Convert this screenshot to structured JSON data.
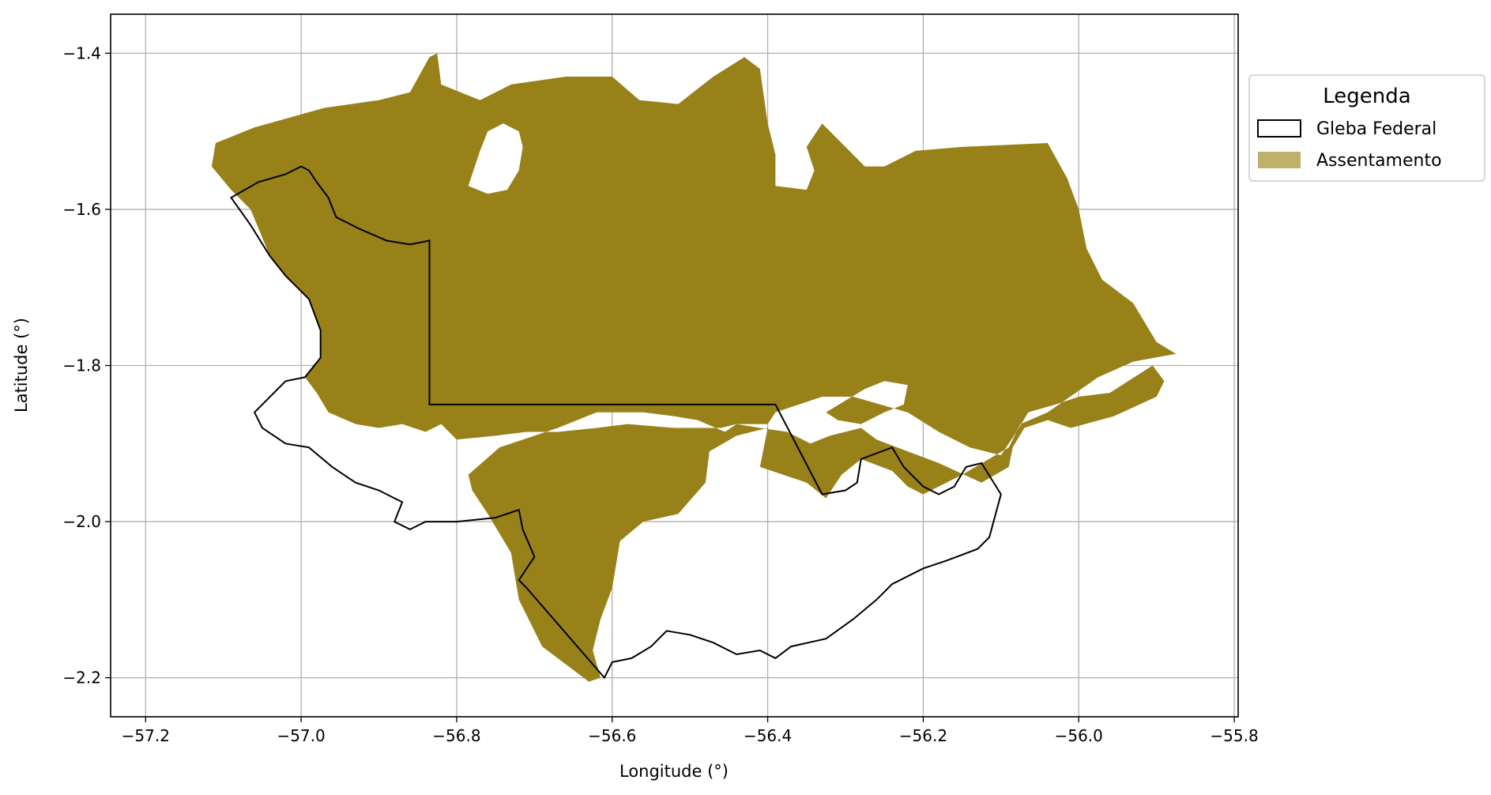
{
  "axes": {
    "xlabel": "Longitude (°)",
    "ylabel": "Latitude (°)",
    "xlim": [
      -57.245,
      -55.795
    ],
    "ylim": [
      -2.25,
      -1.35
    ],
    "xticks": [
      -57.2,
      -57.0,
      -56.8,
      -56.6,
      -56.4,
      -56.2,
      -56.0,
      -55.8
    ],
    "xtick_labels": [
      "−57.2",
      "−57.0",
      "−56.8",
      "−56.6",
      "−56.4",
      "−56.2",
      "−56.0",
      "−55.8"
    ],
    "yticks": [
      -1.4,
      -1.6,
      -1.8,
      -2.0,
      -2.2
    ],
    "ytick_labels": [
      "−1.4",
      "−1.6",
      "−1.8",
      "−2.0",
      "−2.2"
    ],
    "grid": true
  },
  "legend": {
    "title": "Legenda",
    "placement": "outside-right-top",
    "items": [
      {
        "label": "Gleba Federal",
        "style": "outline",
        "color": "#000000"
      },
      {
        "label": "Assentamento",
        "style": "fill",
        "color": "#bfb06a"
      }
    ]
  },
  "layers": {
    "assentamento": {
      "fill": "#988119",
      "polygon": [
        [
          -57.06,
          -1.495
        ],
        [
          -56.97,
          -1.47
        ],
        [
          -56.9,
          -1.46
        ],
        [
          -56.86,
          -1.45
        ],
        [
          -56.835,
          -1.405
        ],
        [
          -56.825,
          -1.4
        ],
        [
          -56.82,
          -1.44
        ],
        [
          -56.77,
          -1.46
        ],
        [
          -56.73,
          -1.44
        ],
        [
          -56.66,
          -1.43
        ],
        [
          -56.6,
          -1.43
        ],
        [
          -56.565,
          -1.46
        ],
        [
          -56.515,
          -1.465
        ],
        [
          -56.47,
          -1.43
        ],
        [
          -56.43,
          -1.405
        ],
        [
          -56.41,
          -1.42
        ],
        [
          -56.4,
          -1.49
        ],
        [
          -56.39,
          -1.53
        ],
        [
          -56.39,
          -1.57
        ],
        [
          -56.35,
          -1.575
        ],
        [
          -56.34,
          -1.55
        ],
        [
          -56.35,
          -1.52
        ],
        [
          -56.33,
          -1.49
        ],
        [
          -56.3,
          -1.52
        ],
        [
          -56.275,
          -1.545
        ],
        [
          -56.25,
          -1.545
        ],
        [
          -56.21,
          -1.525
        ],
        [
          -56.15,
          -1.52
        ],
        [
          -56.04,
          -1.515
        ],
        [
          -56.015,
          -1.56
        ],
        [
          -56.0,
          -1.6
        ],
        [
          -55.99,
          -1.65
        ],
        [
          -55.97,
          -1.69
        ],
        [
          -55.93,
          -1.72
        ],
        [
          -55.9,
          -1.77
        ],
        [
          -55.875,
          -1.785
        ],
        [
          -55.93,
          -1.795
        ],
        [
          -55.975,
          -1.815
        ],
        [
          -56.04,
          -1.86
        ],
        [
          -56.075,
          -1.875
        ],
        [
          -56.09,
          -1.905
        ],
        [
          -56.15,
          -1.94
        ],
        [
          -56.2,
          -1.965
        ],
        [
          -56.22,
          -1.955
        ],
        [
          -56.24,
          -1.935
        ],
        [
          -56.28,
          -1.92
        ],
        [
          -56.305,
          -1.94
        ],
        [
          -56.325,
          -1.97
        ],
        [
          -56.35,
          -1.95
        ],
        [
          -56.38,
          -1.94
        ],
        [
          -56.41,
          -1.93
        ],
        [
          -56.4,
          -1.88
        ],
        [
          -56.44,
          -1.89
        ],
        [
          -56.475,
          -1.91
        ],
        [
          -56.48,
          -1.95
        ],
        [
          -56.515,
          -1.99
        ],
        [
          -56.56,
          -2.0
        ],
        [
          -56.59,
          -2.025
        ],
        [
          -56.6,
          -2.085
        ],
        [
          -56.615,
          -2.125
        ],
        [
          -56.625,
          -2.165
        ],
        [
          -56.615,
          -2.2
        ],
        [
          -56.63,
          -2.205
        ],
        [
          -56.69,
          -2.16
        ],
        [
          -56.72,
          -2.1
        ],
        [
          -56.73,
          -2.04
        ],
        [
          -56.76,
          -1.99
        ],
        [
          -56.78,
          -1.96
        ],
        [
          -56.785,
          -1.94
        ],
        [
          -56.745,
          -1.905
        ],
        [
          -56.7,
          -1.89
        ],
        [
          -56.67,
          -1.88
        ],
        [
          -56.62,
          -1.86
        ],
        [
          -56.56,
          -1.86
        ],
        [
          -56.52,
          -1.865
        ],
        [
          -56.49,
          -1.87
        ],
        [
          -56.455,
          -1.885
        ],
        [
          -56.44,
          -1.875
        ],
        [
          -56.4,
          -1.875
        ],
        [
          -56.39,
          -1.86
        ],
        [
          -56.33,
          -1.84
        ],
        [
          -56.29,
          -1.84
        ],
        [
          -56.22,
          -1.86
        ],
        [
          -56.18,
          -1.885
        ],
        [
          -56.14,
          -1.905
        ],
        [
          -56.1,
          -1.915
        ],
        [
          -56.08,
          -1.885
        ],
        [
          -56.065,
          -1.86
        ],
        [
          -56.03,
          -1.85
        ],
        [
          -56.0,
          -1.84
        ],
        [
          -55.96,
          -1.835
        ],
        [
          -55.905,
          -1.8
        ],
        [
          -55.89,
          -1.82
        ],
        [
          -55.9,
          -1.84
        ],
        [
          -55.955,
          -1.865
        ],
        [
          -56.01,
          -1.88
        ],
        [
          -56.04,
          -1.87
        ],
        [
          -56.07,
          -1.88
        ],
        [
          -56.085,
          -1.905
        ],
        [
          -56.09,
          -1.93
        ],
        [
          -56.125,
          -1.95
        ],
        [
          -56.18,
          -1.925
        ],
        [
          -56.26,
          -1.895
        ],
        [
          -56.28,
          -1.88
        ],
        [
          -56.32,
          -1.89
        ],
        [
          -56.345,
          -1.9
        ],
        [
          -56.375,
          -1.885
        ],
        [
          -56.41,
          -1.88
        ],
        [
          -56.44,
          -1.875
        ],
        [
          -56.46,
          -1.88
        ],
        [
          -56.52,
          -1.88
        ],
        [
          -56.58,
          -1.875
        ],
        [
          -56.62,
          -1.88
        ],
        [
          -56.67,
          -1.885
        ],
        [
          -56.71,
          -1.885
        ],
        [
          -56.75,
          -1.89
        ],
        [
          -56.8,
          -1.895
        ],
        [
          -56.82,
          -1.875
        ],
        [
          -56.84,
          -1.885
        ],
        [
          -56.87,
          -1.875
        ],
        [
          -56.9,
          -1.88
        ],
        [
          -56.93,
          -1.875
        ],
        [
          -56.965,
          -1.86
        ],
        [
          -56.98,
          -1.835
        ],
        [
          -56.995,
          -1.815
        ],
        [
          -56.975,
          -1.79
        ],
        [
          -56.975,
          -1.755
        ],
        [
          -56.99,
          -1.715
        ],
        [
          -57.02,
          -1.685
        ],
        [
          -57.04,
          -1.66
        ],
        [
          -57.065,
          -1.6
        ],
        [
          -57.09,
          -1.575
        ],
        [
          -57.115,
          -1.545
        ],
        [
          -57.11,
          -1.515
        ]
      ],
      "holes": [
        [
          [
            -56.785,
            -1.57
          ],
          [
            -56.77,
            -1.525
          ],
          [
            -56.76,
            -1.5
          ],
          [
            -56.74,
            -1.49
          ],
          [
            -56.72,
            -1.5
          ],
          [
            -56.715,
            -1.52
          ],
          [
            -56.72,
            -1.55
          ],
          [
            -56.735,
            -1.575
          ],
          [
            -56.76,
            -1.58
          ]
        ],
        [
          [
            -56.325,
            -1.86
          ],
          [
            -56.3,
            -1.845
          ],
          [
            -56.275,
            -1.83
          ],
          [
            -56.25,
            -1.82
          ],
          [
            -56.22,
            -1.825
          ],
          [
            -56.225,
            -1.85
          ],
          [
            -56.25,
            -1.86
          ],
          [
            -56.28,
            -1.875
          ],
          [
            -56.31,
            -1.87
          ]
        ]
      ]
    },
    "gleba_federal": {
      "stroke": "#000000",
      "polygon": [
        [
          -57.09,
          -1.585
        ],
        [
          -57.055,
          -1.565
        ],
        [
          -57.02,
          -1.555
        ],
        [
          -57.0,
          -1.545
        ],
        [
          -56.99,
          -1.55
        ],
        [
          -56.98,
          -1.565
        ],
        [
          -56.965,
          -1.585
        ],
        [
          -56.955,
          -1.61
        ],
        [
          -56.925,
          -1.625
        ],
        [
          -56.89,
          -1.64
        ],
        [
          -56.86,
          -1.645
        ],
        [
          -56.835,
          -1.64
        ],
        [
          -56.835,
          -1.85
        ],
        [
          -56.39,
          -1.85
        ],
        [
          -56.33,
          -1.965
        ],
        [
          -56.3,
          -1.96
        ],
        [
          -56.285,
          -1.95
        ],
        [
          -56.28,
          -1.92
        ],
        [
          -56.24,
          -1.905
        ],
        [
          -56.225,
          -1.93
        ],
        [
          -56.2,
          -1.955
        ],
        [
          -56.18,
          -1.965
        ],
        [
          -56.16,
          -1.955
        ],
        [
          -56.145,
          -1.93
        ],
        [
          -56.125,
          -1.925
        ],
        [
          -56.1,
          -1.965
        ],
        [
          -56.115,
          -2.02
        ],
        [
          -56.13,
          -2.035
        ],
        [
          -56.17,
          -2.05
        ],
        [
          -56.2,
          -2.06
        ],
        [
          -56.24,
          -2.08
        ],
        [
          -56.26,
          -2.1
        ],
        [
          -56.29,
          -2.125
        ],
        [
          -56.325,
          -2.15
        ],
        [
          -56.37,
          -2.16
        ],
        [
          -56.39,
          -2.175
        ],
        [
          -56.41,
          -2.165
        ],
        [
          -56.44,
          -2.17
        ],
        [
          -56.47,
          -2.155
        ],
        [
          -56.5,
          -2.145
        ],
        [
          -56.53,
          -2.14
        ],
        [
          -56.55,
          -2.16
        ],
        [
          -56.575,
          -2.175
        ],
        [
          -56.6,
          -2.18
        ],
        [
          -56.61,
          -2.2
        ],
        [
          -56.71,
          -2.085
        ],
        [
          -56.72,
          -2.075
        ],
        [
          -56.7,
          -2.045
        ],
        [
          -56.715,
          -2.01
        ],
        [
          -56.72,
          -1.985
        ],
        [
          -56.75,
          -1.995
        ],
        [
          -56.8,
          -2.0
        ],
        [
          -56.84,
          -2.0
        ],
        [
          -56.86,
          -2.01
        ],
        [
          -56.88,
          -2.0
        ],
        [
          -56.87,
          -1.975
        ],
        [
          -56.9,
          -1.96
        ],
        [
          -56.93,
          -1.95
        ],
        [
          -56.96,
          -1.93
        ],
        [
          -56.99,
          -1.905
        ],
        [
          -57.02,
          -1.9
        ],
        [
          -57.05,
          -1.88
        ],
        [
          -57.06,
          -1.86
        ],
        [
          -57.02,
          -1.82
        ],
        [
          -56.995,
          -1.815
        ],
        [
          -56.975,
          -1.79
        ],
        [
          -56.975,
          -1.755
        ],
        [
          -56.99,
          -1.715
        ],
        [
          -57.02,
          -1.685
        ],
        [
          -57.04,
          -1.66
        ],
        [
          -57.065,
          -1.62
        ]
      ]
    }
  }
}
